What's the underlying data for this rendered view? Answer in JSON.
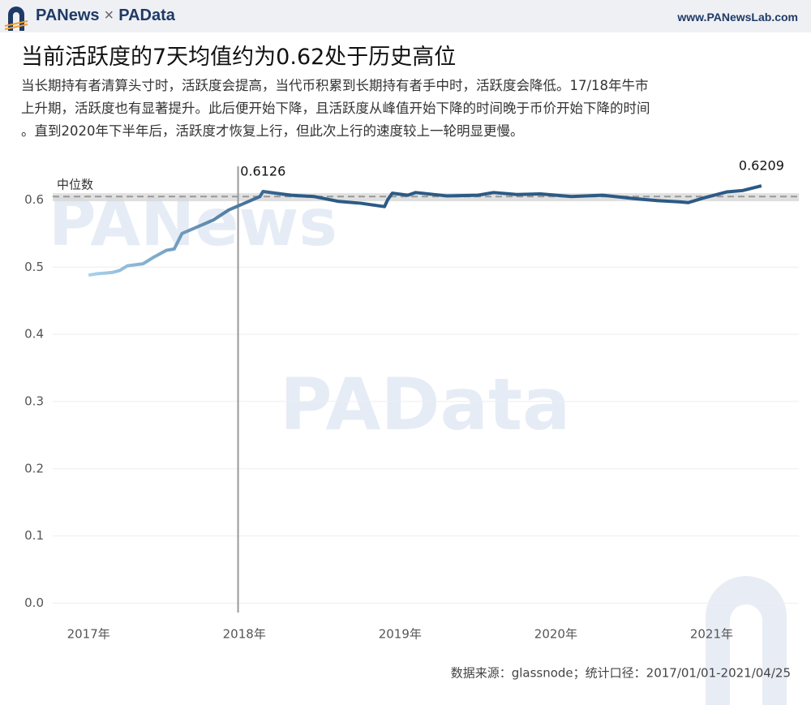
{
  "header": {
    "brand": "PANews",
    "cross": "×",
    "brand2": "PAData",
    "site": "www.PANewsLab.com"
  },
  "chart_data": {
    "type": "line",
    "title": "当前活跃度的7天均值约为0.62处于历史高位",
    "subtitle_lines": [
      "当长期持有者清算头寸时，活跃度会提高，当代币积累到长期持有者手中时，活跃度会降低。17/18年牛市",
      "上升期，活跃度也有显著提升。此后便开始下降，且活跃度从峰值开始下降的时间晚于币价开始下降的时间",
      "。直到2020年下半年后，活跃度才恢复上行，但此次上行的速度较上一轮明显更慢。"
    ],
    "watermarks": [
      "PANews",
      "PAData"
    ],
    "x": [
      2017.0,
      2017.05,
      2017.15,
      2017.2,
      2017.25,
      2017.35,
      2017.42,
      2017.5,
      2017.55,
      2017.6,
      2017.7,
      2017.8,
      2017.9,
      2018.0,
      2018.1,
      2018.12,
      2018.2,
      2018.3,
      2018.45,
      2018.6,
      2018.75,
      2018.9,
      2018.92,
      2018.95,
      2019.05,
      2019.1,
      2019.3,
      2019.5,
      2019.6,
      2019.75,
      2019.9,
      2020.1,
      2020.3,
      2020.5,
      2020.65,
      2020.8,
      2020.85,
      2020.95,
      2021.1,
      2021.2,
      2021.32
    ],
    "series": [
      {
        "name": "活跃度",
        "color": "#2c5a85",
        "start_color": "#a9d2ec",
        "values": [
          0.488,
          0.49,
          0.492,
          0.495,
          0.502,
          0.505,
          0.515,
          0.525,
          0.527,
          0.55,
          0.56,
          0.57,
          0.585,
          0.595,
          0.605,
          0.6126,
          0.61,
          0.607,
          0.605,
          0.598,
          0.595,
          0.59,
          0.6,
          0.61,
          0.607,
          0.611,
          0.606,
          0.607,
          0.611,
          0.608,
          0.609,
          0.605,
          0.607,
          0.602,
          0.599,
          0.597,
          0.596,
          0.603,
          0.612,
          0.614,
          0.6209
        ]
      }
    ],
    "xlim": [
      2016.77,
      2021.56
    ],
    "xticks": [
      {
        "value": 2017,
        "label": "2017年"
      },
      {
        "value": 2018,
        "label": "2018年"
      },
      {
        "value": 2019,
        "label": "2019年"
      },
      {
        "value": 2020,
        "label": "2020年"
      },
      {
        "value": 2021,
        "label": "2021年"
      }
    ],
    "ylim": [
      -0.02,
      0.65
    ],
    "yticks": [
      {
        "value": 0,
        "label": "0.0"
      },
      0.1,
      0.2,
      0.3,
      0.4,
      0.5,
      0.6
    ],
    "grid": true,
    "median": {
      "label": "中位数",
      "value": 0.605,
      "band": [
        0.598,
        0.61
      ]
    },
    "vline": 2017.96,
    "annotations": [
      {
        "x": 2018.12,
        "y": 0.6126
      },
      {
        "x": 2021.32,
        "y": 0.6209
      }
    ],
    "source": "数据来源：glassnode；统计口径：2017/01/01-2021/04/25"
  }
}
